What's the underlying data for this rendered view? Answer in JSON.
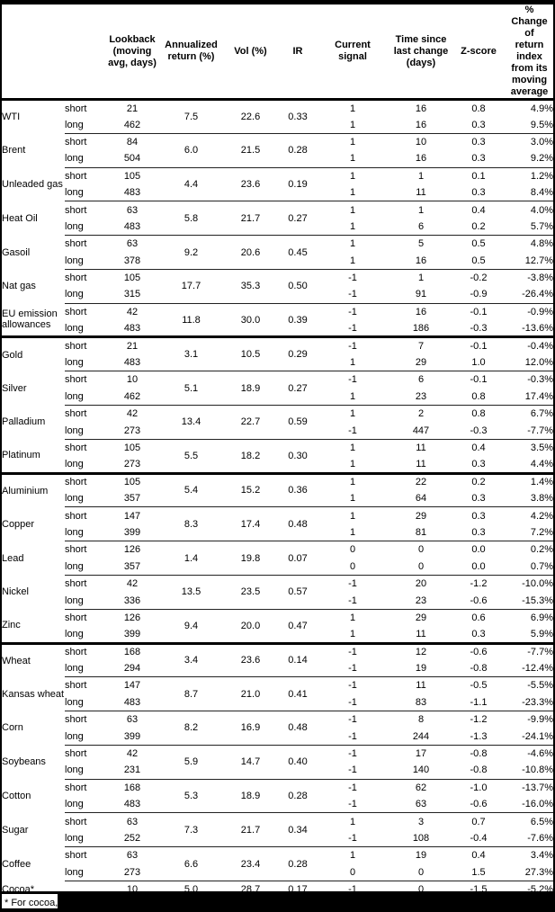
{
  "colors": {
    "text": "#000000",
    "background": "#ffffff",
    "rule_thin": "#222222",
    "rule_thick": "#000000",
    "redaction": "#000000"
  },
  "table": {
    "columns": [
      {
        "key": "name",
        "label": ""
      },
      {
        "key": "leg",
        "label": ""
      },
      {
        "key": "lookback",
        "label": "Lookback\n(moving\navg, days)"
      },
      {
        "key": "ann",
        "label": "Annualized\nreturn (%)"
      },
      {
        "key": "vol",
        "label": "Vol (%)"
      },
      {
        "key": "ir",
        "label": "IR"
      },
      {
        "key": "signal",
        "label": "Current\nsignal"
      },
      {
        "key": "time",
        "label": "Time since\nlast change\n(days)"
      },
      {
        "key": "z",
        "label": "Z-score"
      },
      {
        "key": "pct",
        "label": "% Change of\nreturn index\nfrom its\nmoving\naverage"
      }
    ],
    "commodities": [
      {
        "name": "WTI",
        "section_start": true,
        "ann": "7.5",
        "vol": "22.6",
        "ir": "0.33",
        "legs": [
          {
            "leg": "short",
            "lookback": "21",
            "signal": "1",
            "time": "16",
            "z": "0.8",
            "pct": "4.9%"
          },
          {
            "leg": "long",
            "lookback": "462",
            "signal": "1",
            "time": "16",
            "z": "0.3",
            "pct": "9.5%"
          }
        ]
      },
      {
        "name": "Brent",
        "section_start": false,
        "ann": "6.0",
        "vol": "21.5",
        "ir": "0.28",
        "legs": [
          {
            "leg": "short",
            "lookback": "84",
            "signal": "1",
            "time": "10",
            "z": "0.3",
            "pct": "3.0%"
          },
          {
            "leg": "long",
            "lookback": "504",
            "signal": "1",
            "time": "16",
            "z": "0.3",
            "pct": "9.2%"
          }
        ]
      },
      {
        "name": "Unleaded gas",
        "section_start": false,
        "ann": "4.4",
        "vol": "23.6",
        "ir": "0.19",
        "legs": [
          {
            "leg": "short",
            "lookback": "105",
            "signal": "1",
            "time": "1",
            "z": "0.1",
            "pct": "1.2%"
          },
          {
            "leg": "long",
            "lookback": "483",
            "signal": "1",
            "time": "11",
            "z": "0.3",
            "pct": "8.4%"
          }
        ]
      },
      {
        "name": "Heat Oil",
        "section_start": false,
        "ann": "5.8",
        "vol": "21.7",
        "ir": "0.27",
        "legs": [
          {
            "leg": "short",
            "lookback": "63",
            "signal": "1",
            "time": "1",
            "z": "0.4",
            "pct": "4.0%"
          },
          {
            "leg": "long",
            "lookback": "483",
            "signal": "1",
            "time": "6",
            "z": "0.2",
            "pct": "5.7%"
          }
        ]
      },
      {
        "name": "Gasoil",
        "section_start": false,
        "ann": "9.2",
        "vol": "20.6",
        "ir": "0.45",
        "legs": [
          {
            "leg": "short",
            "lookback": "63",
            "signal": "1",
            "time": "5",
            "z": "0.5",
            "pct": "4.8%"
          },
          {
            "leg": "long",
            "lookback": "378",
            "signal": "1",
            "time": "16",
            "z": "0.5",
            "pct": "12.7%"
          }
        ]
      },
      {
        "name": "Nat gas",
        "section_start": false,
        "ann": "17.7",
        "vol": "35.3",
        "ir": "0.50",
        "legs": [
          {
            "leg": "short",
            "lookback": "105",
            "signal": "-1",
            "time": "1",
            "z": "-0.2",
            "pct": "-3.8%"
          },
          {
            "leg": "long",
            "lookback": "315",
            "signal": "-1",
            "time": "91",
            "z": "-0.9",
            "pct": "-26.4%"
          }
        ]
      },
      {
        "name": "EU emission allowances",
        "section_start": false,
        "ann": "11.8",
        "vol": "30.0",
        "ir": "0.39",
        "legs": [
          {
            "leg": "short",
            "lookback": "42",
            "signal": "-1",
            "time": "16",
            "z": "-0.1",
            "pct": "-0.9%"
          },
          {
            "leg": "long",
            "lookback": "483",
            "signal": "-1",
            "time": "186",
            "z": "-0.3",
            "pct": "-13.6%"
          }
        ]
      },
      {
        "name": "Gold",
        "section_start": true,
        "ann": "3.1",
        "vol": "10.5",
        "ir": "0.29",
        "legs": [
          {
            "leg": "short",
            "lookback": "21",
            "signal": "-1",
            "time": "7",
            "z": "-0.1",
            "pct": "-0.4%"
          },
          {
            "leg": "long",
            "lookback": "483",
            "signal": "1",
            "time": "29",
            "z": "1.0",
            "pct": "12.0%"
          }
        ]
      },
      {
        "name": "Silver",
        "section_start": false,
        "ann": "5.1",
        "vol": "18.9",
        "ir": "0.27",
        "legs": [
          {
            "leg": "short",
            "lookback": "10",
            "signal": "-1",
            "time": "6",
            "z": "-0.1",
            "pct": "-0.3%"
          },
          {
            "leg": "long",
            "lookback": "462",
            "signal": "1",
            "time": "23",
            "z": "0.8",
            "pct": "17.4%"
          }
        ]
      },
      {
        "name": "Palladium",
        "section_start": false,
        "ann": "13.4",
        "vol": "22.7",
        "ir": "0.59",
        "legs": [
          {
            "leg": "short",
            "lookback": "42",
            "signal": "1",
            "time": "2",
            "z": "0.8",
            "pct": "6.7%"
          },
          {
            "leg": "long",
            "lookback": "273",
            "signal": "-1",
            "time": "447",
            "z": "-0.3",
            "pct": "-7.7%"
          }
        ]
      },
      {
        "name": "Platinum",
        "section_start": false,
        "ann": "5.5",
        "vol": "18.2",
        "ir": "0.30",
        "legs": [
          {
            "leg": "short",
            "lookback": "105",
            "signal": "1",
            "time": "11",
            "z": "0.4",
            "pct": "3.5%"
          },
          {
            "leg": "long",
            "lookback": "273",
            "signal": "1",
            "time": "11",
            "z": "0.3",
            "pct": "4.4%"
          }
        ]
      },
      {
        "name": "Aluminium",
        "section_start": true,
        "ann": "5.4",
        "vol": "15.2",
        "ir": "0.36",
        "legs": [
          {
            "leg": "short",
            "lookback": "105",
            "signal": "1",
            "time": "22",
            "z": "0.2",
            "pct": "1.4%"
          },
          {
            "leg": "long",
            "lookback": "357",
            "signal": "1",
            "time": "64",
            "z": "0.3",
            "pct": "3.8%"
          }
        ]
      },
      {
        "name": "Copper",
        "section_start": false,
        "ann": "8.3",
        "vol": "17.4",
        "ir": "0.48",
        "legs": [
          {
            "leg": "short",
            "lookback": "147",
            "signal": "1",
            "time": "29",
            "z": "0.3",
            "pct": "4.2%"
          },
          {
            "leg": "long",
            "lookback": "399",
            "signal": "1",
            "time": "81",
            "z": "0.3",
            "pct": "7.2%"
          }
        ]
      },
      {
        "name": "Lead",
        "section_start": false,
        "ann": "1.4",
        "vol": "19.8",
        "ir": "0.07",
        "legs": [
          {
            "leg": "short",
            "lookback": "126",
            "signal": "0",
            "time": "0",
            "z": "0.0",
            "pct": "0.2%"
          },
          {
            "leg": "long",
            "lookback": "357",
            "signal": "0",
            "time": "0",
            "z": "0.0",
            "pct": "0.7%"
          }
        ]
      },
      {
        "name": "Nickel",
        "section_start": false,
        "ann": "13.5",
        "vol": "23.5",
        "ir": "0.57",
        "legs": [
          {
            "leg": "short",
            "lookback": "42",
            "signal": "-1",
            "time": "20",
            "z": "-1.2",
            "pct": "-10.0%"
          },
          {
            "leg": "long",
            "lookback": "336",
            "signal": "-1",
            "time": "23",
            "z": "-0.6",
            "pct": "-15.3%"
          }
        ]
      },
      {
        "name": "Zinc",
        "section_start": false,
        "ann": "9.4",
        "vol": "20.0",
        "ir": "0.47",
        "legs": [
          {
            "leg": "short",
            "lookback": "126",
            "signal": "1",
            "time": "29",
            "z": "0.6",
            "pct": "6.9%"
          },
          {
            "leg": "long",
            "lookback": "399",
            "signal": "1",
            "time": "11",
            "z": "0.3",
            "pct": "5.9%"
          }
        ]
      },
      {
        "name": "Wheat",
        "section_start": true,
        "ann": "3.4",
        "vol": "23.6",
        "ir": "0.14",
        "legs": [
          {
            "leg": "short",
            "lookback": "168",
            "signal": "-1",
            "time": "12",
            "z": "-0.6",
            "pct": "-7.7%"
          },
          {
            "leg": "long",
            "lookback": "294",
            "signal": "-1",
            "time": "19",
            "z": "-0.8",
            "pct": "-12.4%"
          }
        ]
      },
      {
        "name": "Kansas wheat",
        "section_start": false,
        "ann": "8.7",
        "vol": "21.0",
        "ir": "0.41",
        "legs": [
          {
            "leg": "short",
            "lookback": "147",
            "signal": "-1",
            "time": "11",
            "z": "-0.5",
            "pct": "-5.5%"
          },
          {
            "leg": "long",
            "lookback": "483",
            "signal": "-1",
            "time": "83",
            "z": "-1.1",
            "pct": "-23.3%"
          }
        ]
      },
      {
        "name": "Corn",
        "section_start": false,
        "ann": "8.2",
        "vol": "16.9",
        "ir": "0.48",
        "legs": [
          {
            "leg": "short",
            "lookback": "63",
            "signal": "-1",
            "time": "8",
            "z": "-1.2",
            "pct": "-9.9%"
          },
          {
            "leg": "long",
            "lookback": "399",
            "signal": "-1",
            "time": "244",
            "z": "-1.3",
            "pct": "-24.1%"
          }
        ]
      },
      {
        "name": "Soybeans",
        "section_start": false,
        "ann": "5.9",
        "vol": "14.7",
        "ir": "0.40",
        "legs": [
          {
            "leg": "short",
            "lookback": "42",
            "signal": "-1",
            "time": "17",
            "z": "-0.8",
            "pct": "-4.6%"
          },
          {
            "leg": "long",
            "lookback": "231",
            "signal": "-1",
            "time": "140",
            "z": "-0.8",
            "pct": "-10.8%"
          }
        ]
      },
      {
        "name": "Cotton",
        "section_start": false,
        "ann": "5.3",
        "vol": "18.9",
        "ir": "0.28",
        "legs": [
          {
            "leg": "short",
            "lookback": "168",
            "signal": "-1",
            "time": "62",
            "z": "-1.0",
            "pct": "-13.7%"
          },
          {
            "leg": "long",
            "lookback": "483",
            "signal": "-1",
            "time": "63",
            "z": "-0.6",
            "pct": "-16.0%"
          }
        ]
      },
      {
        "name": "Sugar",
        "section_start": false,
        "ann": "7.3",
        "vol": "21.7",
        "ir": "0.34",
        "legs": [
          {
            "leg": "short",
            "lookback": "63",
            "signal": "1",
            "time": "3",
            "z": "0.7",
            "pct": "6.5%"
          },
          {
            "leg": "long",
            "lookback": "252",
            "signal": "-1",
            "time": "108",
            "z": "-0.4",
            "pct": "-7.6%"
          }
        ]
      },
      {
        "name": "Coffee",
        "section_start": false,
        "ann": "6.6",
        "vol": "23.4",
        "ir": "0.28",
        "legs": [
          {
            "leg": "short",
            "lookback": "63",
            "signal": "1",
            "time": "19",
            "z": "0.4",
            "pct": "3.4%"
          },
          {
            "leg": "long",
            "lookback": "273",
            "signal": "0",
            "time": "0",
            "z": "1.5",
            "pct": "27.3%"
          }
        ]
      },
      {
        "name": "Cocoa*",
        "section_start": false,
        "ann": "5.0",
        "vol": "28.7",
        "ir": "0.17",
        "legs": [
          {
            "leg": "",
            "lookback": "10",
            "signal": "-1",
            "time": "0",
            "z": "-1.5",
            "pct": "-5.2%"
          }
        ]
      }
    ]
  },
  "footnote": {
    "text": "* For cocoa, uses o"
  }
}
